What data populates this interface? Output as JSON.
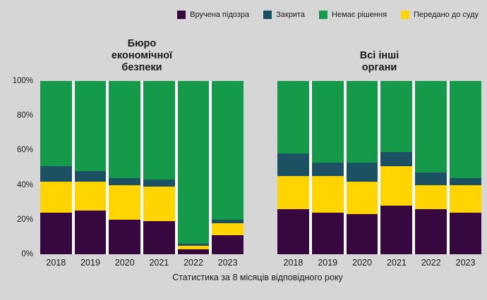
{
  "legend": {
    "items": [
      {
        "label": "Вручена підозра",
        "color": "#36083f"
      },
      {
        "label": "Закрита",
        "color": "#1b5162"
      },
      {
        "label": "Немає рішення",
        "color": "#149a49"
      },
      {
        "label": "Передано до суду",
        "color": "#ffd400"
      }
    ]
  },
  "y_axis": {
    "ticks": [
      "100%",
      "80%",
      "60%",
      "40%",
      "20%",
      "0%"
    ]
  },
  "caption": "Статистика за 8 місяців відповідного року",
  "colors": {
    "background": "#d6d6d6",
    "plot_background": "#ffffff"
  },
  "chart_data": [
    {
      "type": "bar",
      "stacked": true,
      "percent": true,
      "title": "Бюро економічної безпеки",
      "categories": [
        "2018",
        "2019",
        "2020",
        "2021",
        "2022",
        "2023"
      ],
      "ylim": [
        0,
        100
      ],
      "legend_position": "top",
      "grid": false,
      "series": [
        {
          "name": "Вручена підозра",
          "color": "#36083f",
          "values": [
            24,
            25,
            20,
            19,
            3,
            11
          ]
        },
        {
          "name": "Передано до суду",
          "color": "#ffd400",
          "values": [
            18,
            17,
            20,
            20,
            2,
            7
          ]
        },
        {
          "name": "Закрита",
          "color": "#1b5162",
          "values": [
            9,
            6,
            4,
            4,
            1,
            2
          ]
        },
        {
          "name": "Немає рішення",
          "color": "#149a49",
          "values": [
            49,
            52,
            56,
            57,
            94,
            80
          ]
        }
      ]
    },
    {
      "type": "bar",
      "stacked": true,
      "percent": true,
      "title": "Всі інші органи",
      "categories": [
        "2018",
        "2019",
        "2020",
        "2021",
        "2022",
        "2023"
      ],
      "ylim": [
        0,
        100
      ],
      "legend_position": "top",
      "grid": false,
      "series": [
        {
          "name": "Вручена підозра",
          "color": "#36083f",
          "values": [
            26,
            24,
            23,
            28,
            26,
            24
          ]
        },
        {
          "name": "Передано до суду",
          "color": "#ffd400",
          "values": [
            19,
            21,
            19,
            23,
            14,
            16
          ]
        },
        {
          "name": "Закрита",
          "color": "#1b5162",
          "values": [
            13,
            8,
            11,
            8,
            7,
            4
          ]
        },
        {
          "name": "Немає рішення",
          "color": "#149a49",
          "values": [
            42,
            47,
            47,
            41,
            53,
            56
          ]
        }
      ]
    }
  ]
}
